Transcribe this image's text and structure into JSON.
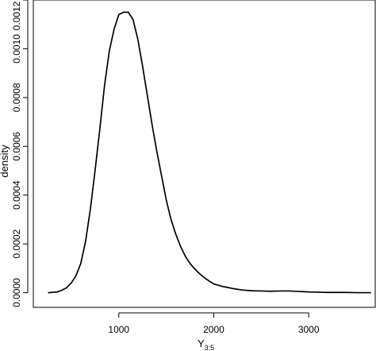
{
  "chart_data": {
    "type": "line",
    "title": "",
    "xlabel": "Y",
    "xlabel_subscript": "3:5",
    "ylabel": "density",
    "xlim": [
      100,
      3700
    ],
    "ylim": [
      -6e-05,
      0.0012
    ],
    "x_ticks": [
      1000,
      2000,
      3000
    ],
    "x_tick_labels": [
      "1000",
      "2000",
      "3000"
    ],
    "y_ticks": [
      0.0,
      0.0002,
      0.0004,
      0.0006,
      0.0008,
      0.001,
      0.0012
    ],
    "y_tick_labels": [
      "0.0000",
      "0.0002",
      "0.0004",
      "0.0006",
      "0.0008",
      "0.0010",
      "0.0012"
    ],
    "grid": false,
    "series": [
      {
        "x": [
          260,
          350,
          400,
          450,
          500,
          550,
          600,
          650,
          700,
          750,
          800,
          850,
          900,
          950,
          1000,
          1050,
          1100,
          1150,
          1200,
          1250,
          1300,
          1350,
          1400,
          1450,
          1500,
          1550,
          1600,
          1650,
          1700,
          1750,
          1800,
          1850,
          1900,
          1950,
          2000,
          2100,
          2200,
          2300,
          2400,
          2500,
          2600,
          2700,
          2800,
          2900,
          3000,
          3100,
          3200,
          3300,
          3400,
          3500,
          3650
        ],
        "y": [
          0.0,
          3e-06,
          1e-05,
          2e-05,
          4e-05,
          7e-05,
          0.00012,
          0.00021,
          0.00034,
          0.0005,
          0.00067,
          0.00085,
          0.00099,
          0.00108,
          0.00114,
          0.00115,
          0.00115,
          0.00112,
          0.00104,
          0.00093,
          0.00081,
          0.00069,
          0.00058,
          0.00048,
          0.00038,
          0.0003,
          0.00024,
          0.00019,
          0.00015,
          0.00012,
          9.7e-05,
          7.8e-05,
          6.2e-05,
          4.8e-05,
          3.6e-05,
          2.5e-05,
          1.7e-05,
          1.1e-05,
          8e-06,
          7e-06,
          6e-06,
          7e-06,
          7e-06,
          5e-06,
          3e-06,
          2e-06,
          1e-06,
          1e-06,
          1e-06,
          0.0,
          0.0
        ]
      }
    ]
  }
}
